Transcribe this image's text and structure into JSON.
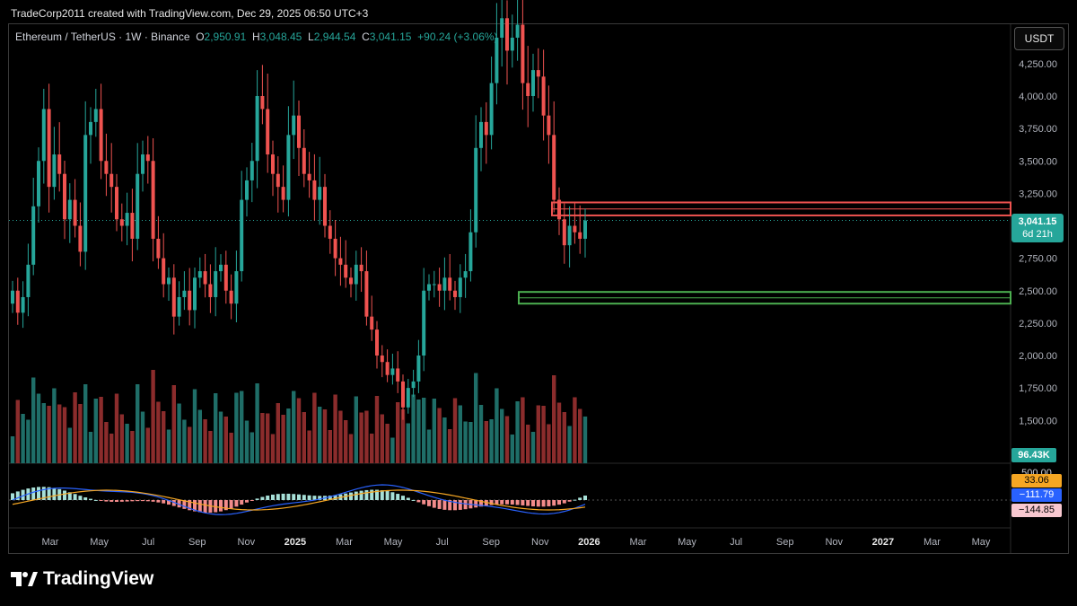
{
  "header": {
    "caption": "TradeCorp2011 created with TradingView.com, Dec 29, 2025 06:50 UTC+3"
  },
  "legend": {
    "symbol": "Ethereum / TetherUS · 1W · Binance",
    "o_label": "O",
    "o": "2,950.91",
    "h_label": "H",
    "h": "3,048.45",
    "l_label": "L",
    "l": "2,944.54",
    "c_label": "C",
    "c": "3,041.15",
    "change": "+90.24 (+3.06%)"
  },
  "currency_button": "USDT",
  "price_tag": {
    "price": "3,041.15",
    "countdown": "6d 21h"
  },
  "volume_tag": "96.43K",
  "indicator_tags": [
    {
      "value": "500.00",
      "color": "#000000",
      "text": "#d1d4dc"
    },
    {
      "value": "33.06",
      "color": "#f5a623",
      "text": "#000000"
    },
    {
      "value": "−111.79",
      "color": "#2962ff",
      "text": "#ffffff"
    },
    {
      "value": "−144.85",
      "color": "#f8c8d0",
      "text": "#000000"
    }
  ],
  "brand": {
    "name": "TradingView"
  },
  "colors": {
    "up": "#26a69a",
    "down": "#ef5350",
    "volume_up": "#1f6e68",
    "volume_down": "#8b2c2c",
    "macd": "#2962ff",
    "signal": "#f5a623",
    "zone_red": "#ef5350",
    "zone_green": "#4caf50"
  },
  "chart_data": {
    "type": "candlestick",
    "symbol": "ETHUSDT",
    "interval": "1W",
    "y_axis": {
      "ticks": [
        "4,250.00",
        "4,000.00",
        "3,750.00",
        "3,500.00",
        "3,250.00",
        "2,750.00",
        "2,500.00",
        "2,250.00",
        "2,000.00",
        "1,750.00",
        "1,500.00"
      ],
      "tick_values": [
        4250,
        4000,
        3750,
        3500,
        3250,
        2750,
        2500,
        2250,
        2000,
        1750,
        1500
      ],
      "range": [
        1250,
        4550
      ]
    },
    "x_axis": {
      "labels": [
        "Mar",
        "May",
        "Jul",
        "Sep",
        "Nov",
        "2025",
        "Mar",
        "May",
        "Jul",
        "Sep",
        "Nov",
        "2026",
        "Mar",
        "May",
        "Jul",
        "Sep",
        "Nov",
        "2027",
        "Mar",
        "May"
      ],
      "bold_labels": [
        "2025",
        "2026",
        "2027"
      ]
    },
    "last_price": 3041.15,
    "zones": [
      {
        "color": "red",
        "from": 3080,
        "to": 3180
      },
      {
        "color": "green",
        "from": 2400,
        "to": 2490
      }
    ],
    "close_series": [
      2500,
      2330,
      2450,
      2700,
      3150,
      3500,
      3900,
      3300,
      3550,
      3400,
      3050,
      3200,
      3000,
      2800,
      3700,
      3800,
      3900,
      3500,
      3400,
      3300,
      3050,
      3000,
      3100,
      2900,
      3400,
      3550,
      3500,
      2900,
      2750,
      2550,
      2600,
      2300,
      2450,
      2500,
      2350,
      2600,
      2650,
      2550,
      2450,
      2650,
      2700,
      2500,
      2400,
      2650,
      3200,
      3350,
      3500,
      4000,
      3900,
      3550,
      3400,
      3300,
      3200,
      3700,
      3850,
      3600,
      3400,
      3350,
      3200,
      3300,
      3000,
      2900,
      2750,
      2700,
      2600,
      2550,
      2700,
      2650,
      2300,
      2200,
      2000,
      1950,
      1850,
      1900,
      1800,
      1600,
      1750,
      1800,
      2000,
      2500,
      2550,
      2550,
      2500,
      2600,
      2500,
      2450,
      2600,
      2650,
      2950,
      3600,
      3800,
      3700,
      4100,
      4450,
      4600,
      4350,
      4450,
      4550,
      4100,
      4000,
      4200,
      4150,
      3850,
      3700,
      3200,
      3050,
      2850,
      3000,
      2950,
      2900,
      3041
    ]
  }
}
